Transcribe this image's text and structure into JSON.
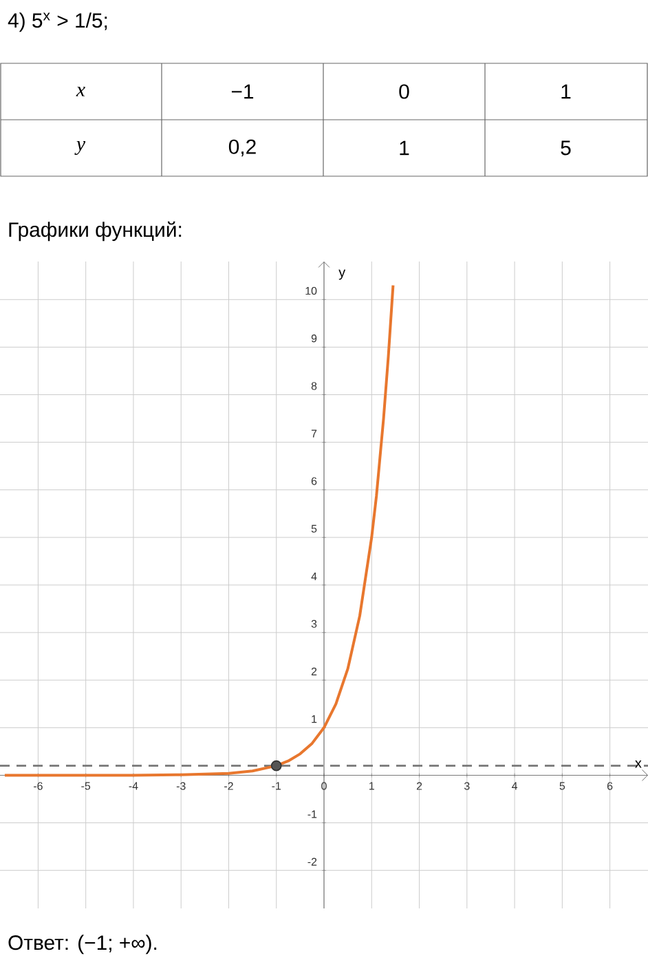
{
  "chart_data": {
    "type": "line",
    "title": "4) 5$^{x}$ > 1/5;",
    "subtitle": "Графики функций:",
    "xlabel": "x",
    "ylabel": "y",
    "annotations": [
      "x",
      "−1",
      "0",
      "1",
      "y",
      "0,2",
      "1",
      "5",
      "Ответ: (−1; +∞)."
    ],
    "series": [
      {
        "type": "line",
        "color": "#e8772e",
        "x": [
          -6.7,
          -5,
          -4,
          -3,
          -2,
          -1.5,
          -1,
          -0.75,
          -0.5,
          -0.25,
          0,
          0.25,
          0.5,
          0.75,
          1,
          1.1,
          1.25,
          1.35,
          1.45
        ],
        "values": [
          0,
          0,
          0,
          0.01,
          0.04,
          0.09,
          0.2,
          0.3,
          0.45,
          0.67,
          1,
          1.5,
          2.24,
          3.35,
          5,
          5.87,
          7.5,
          8.8,
          10.3
        ]
      },
      {
        "type": "scatter",
        "color": "#555555",
        "marker": "circle",
        "x": [
          -1
        ],
        "values": [
          0.2
        ]
      }
    ],
    "ref_lines": [
      {
        "axis": "y",
        "value": 0.2,
        "color": "#777777",
        "line_style": "dashed"
      }
    ],
    "xlim": [
      -6.8,
      6.8
    ],
    "ylim": [
      -2.8,
      10.8
    ],
    "xticks": [
      -6,
      -5,
      -4,
      -3,
      -2,
      -1,
      0,
      1,
      2,
      3,
      4,
      5,
      6
    ],
    "yticks": [
      -2,
      -1,
      1,
      2,
      3,
      4,
      5,
      6,
      7,
      8,
      9,
      10
    ],
    "grid": true
  }
}
